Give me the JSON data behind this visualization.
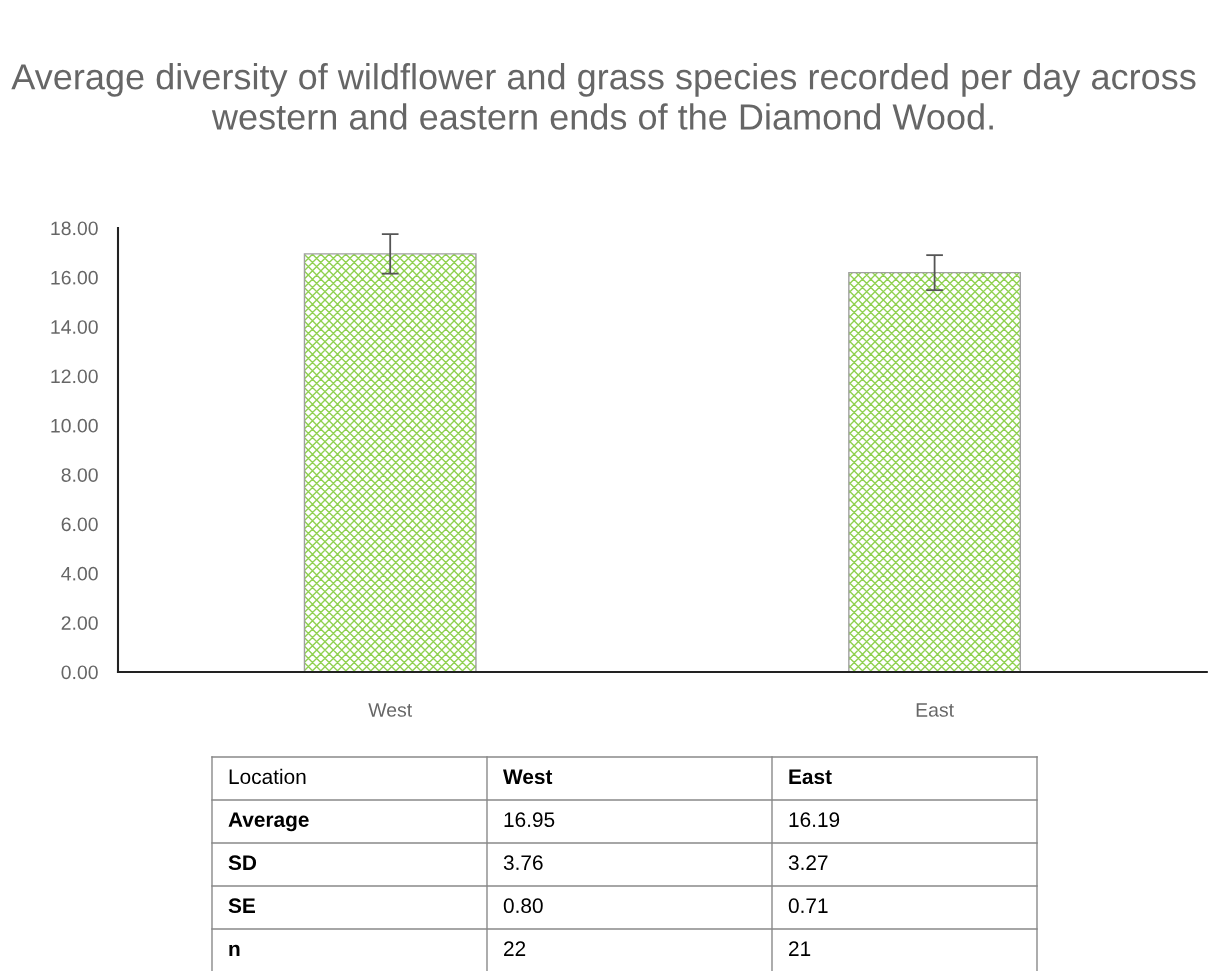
{
  "chart_data": {
    "type": "bar",
    "title": "Average diversity of wildflower and grass species recorded per day across western and eastern ends of the Diamond Wood.",
    "categories": [
      "West",
      "East"
    ],
    "values": [
      16.95,
      16.19
    ],
    "errors": [
      0.8,
      0.71
    ],
    "value_labels": [
      "16.95",
      "16.19"
    ],
    "color": "#8fd14f",
    "ylim": [
      0,
      18
    ],
    "yticks": [
      {
        "value": 0,
        "label": "0.00"
      },
      {
        "value": 2,
        "label": "2.00"
      },
      {
        "value": 4,
        "label": "4.00"
      },
      {
        "value": 6,
        "label": "6.00"
      },
      {
        "value": 8,
        "label": "8.00"
      },
      {
        "value": 10,
        "label": "10.00"
      },
      {
        "value": 12,
        "label": "12.00"
      },
      {
        "value": 14,
        "label": "14.00"
      },
      {
        "value": 16,
        "label": "16.00"
      },
      {
        "value": 18,
        "label": "18.00"
      }
    ],
    "grid": false,
    "annotations": [
      "Location",
      "Average",
      "SD",
      "3.76",
      "3.27",
      "SE",
      "0.80",
      "0.71",
      "n",
      "22",
      "21"
    ]
  }
}
